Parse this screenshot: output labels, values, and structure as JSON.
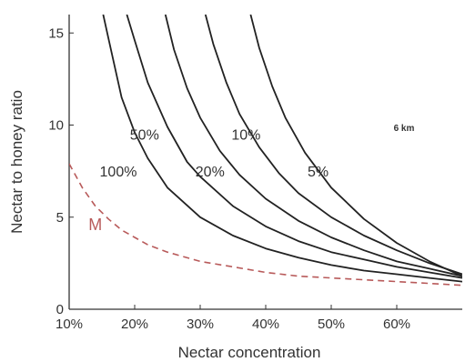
{
  "chart_data": {
    "type": "line",
    "xlabel": "Nectar concentration",
    "ylabel": "Nectar to honey ratio",
    "xlim": [
      10,
      70
    ],
    "ylim": [
      0,
      16
    ],
    "x_ticks": [
      10,
      20,
      30,
      40,
      50,
      60
    ],
    "x_tick_labels": [
      "10%",
      "20%",
      "30%",
      "40%",
      "50%",
      "60%"
    ],
    "y_ticks": [
      0,
      5,
      10,
      15
    ],
    "y_tick_labels": [
      "0",
      "5",
      "10",
      "15"
    ],
    "grid": false,
    "annotation": "6 km",
    "series": [
      {
        "name": "100%",
        "style": "solid",
        "color": "#222222",
        "x": [
          15.2,
          16,
          18,
          20,
          22,
          25,
          30,
          35,
          40,
          45,
          50,
          55,
          60,
          65,
          70
        ],
        "y": [
          16,
          14.7,
          11.5,
          9.6,
          8.2,
          6.6,
          5.0,
          4.0,
          3.3,
          2.8,
          2.4,
          2.1,
          1.9,
          1.7,
          1.5
        ]
      },
      {
        "name": "50%",
        "style": "solid",
        "color": "#222222",
        "x": [
          18.8,
          20,
          22,
          25,
          28,
          30,
          35,
          40,
          45,
          50,
          55,
          60,
          65,
          70
        ],
        "y": [
          16,
          14.6,
          12.3,
          9.9,
          8.0,
          7.2,
          5.6,
          4.5,
          3.7,
          3.1,
          2.7,
          2.3,
          2.0,
          1.7
        ]
      },
      {
        "name": "20%",
        "style": "solid",
        "color": "#222222",
        "x": [
          24.7,
          26,
          28,
          30,
          33,
          36,
          40,
          45,
          50,
          55,
          60,
          65,
          70
        ],
        "y": [
          16,
          14.1,
          12.0,
          10.4,
          8.6,
          7.3,
          6.0,
          4.8,
          3.9,
          3.2,
          2.6,
          2.2,
          1.8
        ]
      },
      {
        "name": "10%",
        "style": "solid",
        "color": "#222222",
        "x": [
          30.8,
          32,
          34,
          36,
          39,
          42,
          45,
          50,
          55,
          60,
          65,
          70
        ],
        "y": [
          16,
          14.4,
          12.3,
          10.6,
          8.8,
          7.4,
          6.3,
          5.0,
          4.0,
          3.2,
          2.5,
          1.9
        ]
      },
      {
        "name": "5%",
        "style": "solid",
        "color": "#222222",
        "x": [
          37.7,
          39,
          41,
          43,
          46,
          50,
          55,
          60,
          65,
          70
        ],
        "y": [
          16,
          14.2,
          12.1,
          10.4,
          8.5,
          6.6,
          4.9,
          3.6,
          2.6,
          1.8
        ]
      },
      {
        "name": "M",
        "style": "dashed",
        "color": "#b85a5a",
        "x": [
          10,
          12,
          14,
          16,
          18,
          20,
          22,
          25,
          30,
          35,
          40,
          45,
          50,
          55,
          60,
          65,
          70
        ],
        "y": [
          7.9,
          6.6,
          5.6,
          4.9,
          4.3,
          3.9,
          3.5,
          3.1,
          2.6,
          2.3,
          2.0,
          1.8,
          1.7,
          1.6,
          1.5,
          1.4,
          1.3
        ]
      }
    ],
    "curve_labels": [
      {
        "text": "100%",
        "x": 17.5,
        "y": 7.2
      },
      {
        "text": "50%",
        "x": 21.5,
        "y": 9.2
      },
      {
        "text": "20%",
        "x": 31.5,
        "y": 7.2
      },
      {
        "text": "10%",
        "x": 37.0,
        "y": 9.2
      },
      {
        "text": "5%",
        "x": 48.0,
        "y": 7.2
      },
      {
        "text": "M",
        "x": 14.0,
        "y": 4.3
      }
    ],
    "colors": {
      "axis": "#333333",
      "curve": "#222222",
      "m_curve": "#b85a5a"
    }
  }
}
